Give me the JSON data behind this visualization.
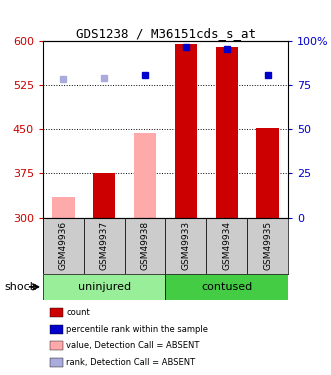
{
  "title": "GDS1238 / M36151cds_s_at",
  "samples": [
    "GSM49936",
    "GSM49937",
    "GSM49938",
    "GSM49933",
    "GSM49934",
    "GSM49935"
  ],
  "bar_values": [
    335,
    375,
    443,
    595,
    590,
    452
  ],
  "bar_absent": [
    true,
    false,
    true,
    false,
    false,
    false
  ],
  "rank_values": [
    536,
    537,
    542,
    590,
    586,
    543
  ],
  "rank_absent": [
    true,
    true,
    false,
    false,
    false,
    false
  ],
  "ylim": [
    300,
    600
  ],
  "y_left_ticks": [
    300,
    375,
    450,
    525,
    600
  ],
  "y_right_ticks": [
    0,
    25,
    50,
    75,
    100
  ],
  "y_right_labels": [
    "0",
    "25",
    "50",
    "75",
    "100%"
  ],
  "bar_color_present": "#cc0000",
  "bar_color_absent": "#ffaaaa",
  "rank_color_present": "#0000cc",
  "rank_color_absent": "#aaaadd",
  "group_info": [
    {
      "start": 0,
      "end": 2,
      "label": "uninjured",
      "color": "#99ee99"
    },
    {
      "start": 3,
      "end": 5,
      "label": "contused",
      "color": "#44cc44"
    }
  ],
  "xlabel_color": "#cc0000",
  "ylabel_right_color": "#0000cc",
  "bar_width": 0.55,
  "figsize": [
    3.31,
    3.75
  ],
  "dpi": 100,
  "legend": [
    {
      "color": "#cc0000",
      "label": "count",
      "square": true
    },
    {
      "color": "#0000cc",
      "label": "percentile rank within the sample",
      "square": true
    },
    {
      "color": "#ffaaaa",
      "label": "value, Detection Call = ABSENT",
      "square": true
    },
    {
      "color": "#aaaadd",
      "label": "rank, Detection Call = ABSENT",
      "square": true
    }
  ]
}
